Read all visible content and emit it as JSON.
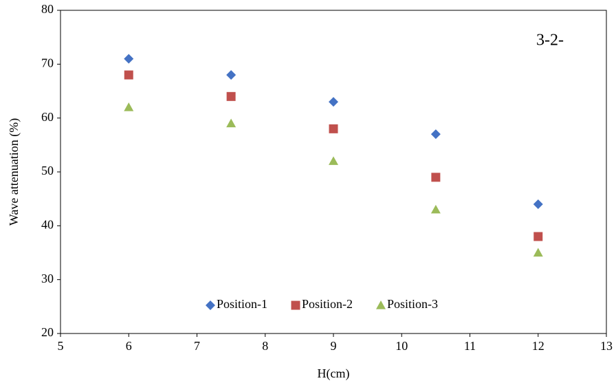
{
  "chart_data": {
    "type": "scatter",
    "annotation": "3-2-",
    "x_label": "H(cm)",
    "y_label": "Wave attenuation (%)",
    "x": [
      6,
      7.5,
      9,
      10.5,
      12
    ],
    "series": [
      {
        "name": "Position-1",
        "color": "#4472c4",
        "marker": "diamond",
        "values": [
          71,
          68,
          63,
          57,
          44
        ]
      },
      {
        "name": "Position-2",
        "color": "#c0504d",
        "marker": "square",
        "values": [
          68,
          64,
          58,
          49,
          38
        ]
      },
      {
        "name": "Position-3",
        "color": "#9bbb59",
        "marker": "triangle",
        "values": [
          62,
          59,
          52,
          43,
          35
        ]
      }
    ],
    "xlim": [
      5,
      13
    ],
    "xticks": [
      5,
      6,
      7,
      8,
      9,
      10,
      11,
      12,
      13
    ],
    "ylim": [
      20,
      80
    ],
    "yticks": [
      20,
      30,
      40,
      50,
      60,
      70,
      80
    ],
    "grid": false,
    "legend": "lower center"
  }
}
